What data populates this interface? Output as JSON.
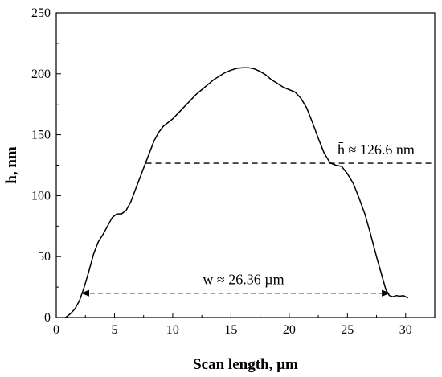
{
  "chart_data": {
    "type": "line",
    "xlabel": "Scan length, µm",
    "ylabel": "h, nm",
    "xlim": [
      0,
      32.5
    ],
    "ylim": [
      0,
      250
    ],
    "xticks": [
      0,
      5,
      10,
      15,
      20,
      25,
      30
    ],
    "yticks": [
      0,
      50,
      100,
      150,
      200,
      250
    ],
    "grid": false,
    "series": [
      {
        "x": [
          0.8,
          1.2,
          1.6,
          2.0,
          2.4,
          2.8,
          3.2,
          3.6,
          4.0,
          4.4,
          4.8,
          5.2,
          5.6,
          6.0,
          6.4,
          6.8,
          7.2,
          7.6,
          8.0,
          8.4,
          8.8,
          9.2,
          9.6,
          10.0,
          10.5,
          11.0,
          11.5,
          12.0,
          12.5,
          13.0,
          13.5,
          14.0,
          14.5,
          15.0,
          15.5,
          16.0,
          16.5,
          17.0,
          17.5,
          18.0,
          18.5,
          19.0,
          19.5,
          20.0,
          20.5,
          21.0,
          21.5,
          22.0,
          22.5,
          23.0,
          23.5,
          24.0,
          24.5,
          25.0,
          25.5,
          26.0,
          26.5,
          27.0,
          27.5,
          28.0,
          28.3,
          28.6,
          28.9,
          29.2,
          29.5,
          29.8,
          30.2
        ],
        "y": [
          0,
          3,
          7,
          14,
          25,
          38,
          52,
          62,
          68,
          75,
          82,
          85,
          85,
          88,
          95,
          105,
          115,
          125,
          135,
          145,
          152,
          157,
          160,
          163,
          168,
          173,
          178,
          183,
          187,
          191,
          195,
          198,
          201,
          203,
          204.5,
          205,
          205,
          204,
          202,
          199,
          195,
          192,
          189,
          187,
          185,
          180,
          172,
          160,
          147,
          135,
          127,
          125,
          124,
          118,
          110,
          98,
          85,
          68,
          50,
          33,
          23,
          18,
          17,
          18,
          17.5,
          18,
          16
        ]
      }
    ],
    "annotations": [
      {
        "label": "h̄ ≈ 126.6 nm",
        "type": "horizontal-dashed-line",
        "y": 126.6,
        "x_from": 7.7,
        "x_to": 32.5
      },
      {
        "label": "w ≈ 26.36 µm",
        "type": "double-arrow-dashed",
        "y": 20,
        "x_from": 2.2,
        "x_to": 28.6
      }
    ]
  }
}
